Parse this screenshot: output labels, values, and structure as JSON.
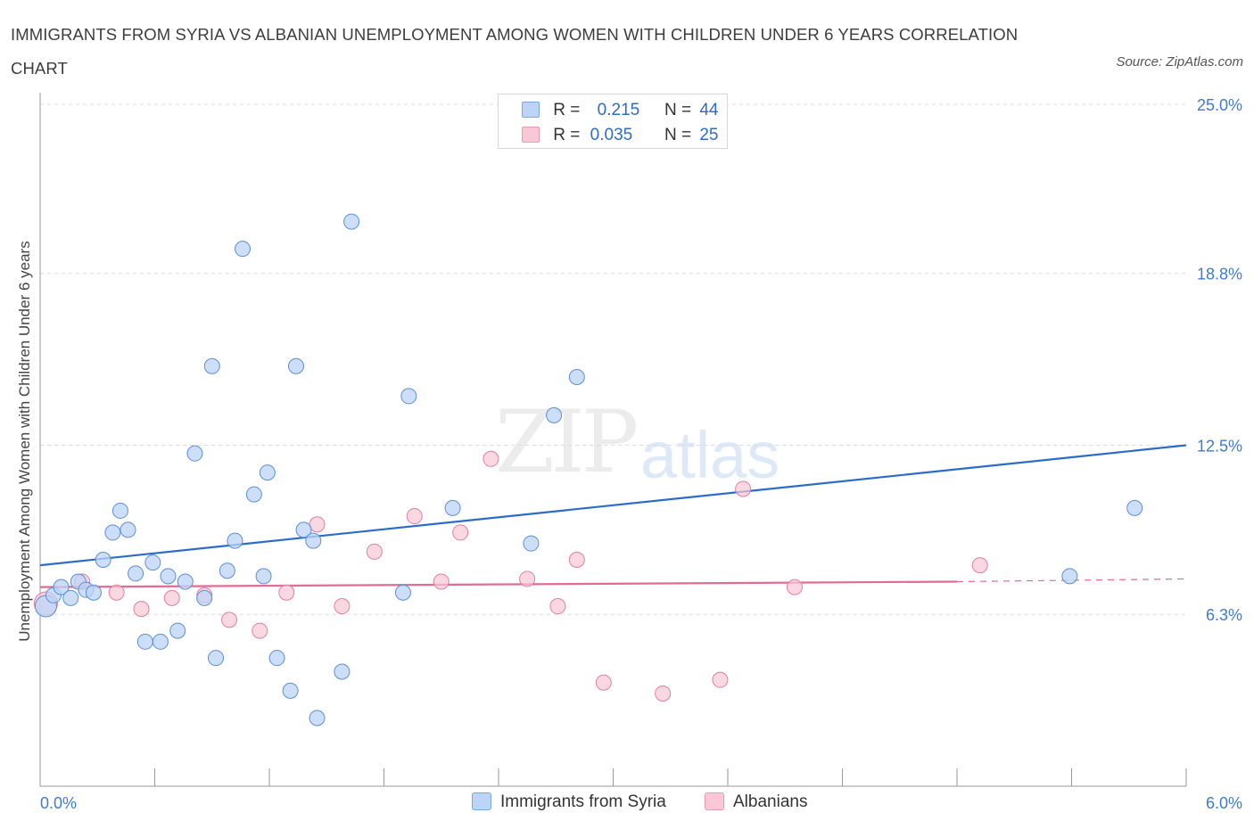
{
  "header": {
    "title": "IMMIGRANTS FROM SYRIA VS ALBANIAN UNEMPLOYMENT AMONG WOMEN WITH CHILDREN UNDER 6 YEARS CORRELATION CHART",
    "source": "Source: ZipAtlas.com"
  },
  "watermark": {
    "zip": "ZIP",
    "atlas": "atlas"
  },
  "legend": {
    "rows": [
      {
        "r_label": "R =",
        "r_value": "0.215",
        "n_label": "N =",
        "n_value": "44"
      },
      {
        "r_label": "R =",
        "r_value": "0.035",
        "n_label": "N =",
        "n_value": "25"
      }
    ]
  },
  "bottom_legend": {
    "series1": "Immigrants from Syria",
    "series2": "Albanians"
  },
  "colors": {
    "syria_fill": "#bcd4f5",
    "syria_stroke": "#5b8fd6",
    "syria_line": "#2b6cc9",
    "alb_fill": "#f8c8d6",
    "alb_stroke": "#e07f9f",
    "alb_line": "#e06c95",
    "grid": "#dcdcdc",
    "axis_label": "#3f7bd0"
  },
  "chart_data": {
    "type": "scatter",
    "title": "IMMIGRANTS FROM SYRIA VS ALBANIAN UNEMPLOYMENT AMONG WOMEN WITH CHILDREN UNDER 6 YEARS CORRELATION CHART",
    "xlabel": "",
    "ylabel": "Unemployment Among Women with Children Under 6 years",
    "xlim": [
      0,
      6
    ],
    "ylim": [
      0,
      25
    ],
    "x_tick_labels": [
      "0.0%",
      "6.0%"
    ],
    "y_ticks": [
      6.3,
      12.5,
      18.8,
      25.0
    ],
    "y_tick_labels": [
      "6.3%",
      "12.5%",
      "18.8%",
      "25.0%"
    ],
    "grid": true,
    "legend_position": "top-center",
    "series": [
      {
        "name": "Immigrants from Syria",
        "R": 0.215,
        "N": 44,
        "trend": {
          "x": [
            0,
            6
          ],
          "y": [
            8.1,
            12.5
          ]
        },
        "points": [
          {
            "x": 0.03,
            "y": 6.6
          },
          {
            "x": 0.07,
            "y": 7.0
          },
          {
            "x": 0.11,
            "y": 7.3
          },
          {
            "x": 0.16,
            "y": 6.9
          },
          {
            "x": 0.2,
            "y": 7.5
          },
          {
            "x": 0.24,
            "y": 7.2
          },
          {
            "x": 0.28,
            "y": 7.1
          },
          {
            "x": 0.33,
            "y": 8.3
          },
          {
            "x": 0.38,
            "y": 9.3
          },
          {
            "x": 0.42,
            "y": 10.1
          },
          {
            "x": 0.46,
            "y": 9.4
          },
          {
            "x": 0.5,
            "y": 7.8
          },
          {
            "x": 0.55,
            "y": 5.3
          },
          {
            "x": 0.59,
            "y": 8.2
          },
          {
            "x": 0.63,
            "y": 5.3
          },
          {
            "x": 0.67,
            "y": 7.7
          },
          {
            "x": 0.72,
            "y": 5.7
          },
          {
            "x": 0.76,
            "y": 7.5
          },
          {
            "x": 0.81,
            "y": 12.2
          },
          {
            "x": 0.86,
            "y": 6.9
          },
          {
            "x": 0.9,
            "y": 15.4
          },
          {
            "x": 0.92,
            "y": 4.7
          },
          {
            "x": 0.98,
            "y": 7.9
          },
          {
            "x": 1.02,
            "y": 9.0
          },
          {
            "x": 1.06,
            "y": 19.7
          },
          {
            "x": 1.12,
            "y": 10.7
          },
          {
            "x": 1.17,
            "y": 7.7
          },
          {
            "x": 1.19,
            "y": 11.5
          },
          {
            "x": 1.24,
            "y": 4.7
          },
          {
            "x": 1.31,
            "y": 3.5
          },
          {
            "x": 1.34,
            "y": 15.4
          },
          {
            "x": 1.38,
            "y": 9.4
          },
          {
            "x": 1.43,
            "y": 9.0
          },
          {
            "x": 1.45,
            "y": 2.5
          },
          {
            "x": 1.58,
            "y": 4.2
          },
          {
            "x": 1.63,
            "y": 20.7
          },
          {
            "x": 1.9,
            "y": 7.1
          },
          {
            "x": 1.93,
            "y": 14.3
          },
          {
            "x": 2.16,
            "y": 10.2
          },
          {
            "x": 2.57,
            "y": 8.9
          },
          {
            "x": 2.69,
            "y": 13.6
          },
          {
            "x": 2.81,
            "y": 15.0
          },
          {
            "x": 5.39,
            "y": 7.7
          },
          {
            "x": 5.73,
            "y": 10.2
          }
        ]
      },
      {
        "name": "Albanians",
        "R": 0.035,
        "N": 25,
        "trend": {
          "x": [
            0,
            4.8
          ],
          "y": [
            7.3,
            7.5
          ],
          "dashed_to": [
            6,
            7.6
          ]
        },
        "points": [
          {
            "x": 0.03,
            "y": 6.7
          },
          {
            "x": 0.22,
            "y": 7.5
          },
          {
            "x": 0.4,
            "y": 7.1
          },
          {
            "x": 0.53,
            "y": 6.5
          },
          {
            "x": 0.69,
            "y": 6.9
          },
          {
            "x": 0.86,
            "y": 7.0
          },
          {
            "x": 0.99,
            "y": 6.1
          },
          {
            "x": 1.15,
            "y": 5.7
          },
          {
            "x": 1.29,
            "y": 7.1
          },
          {
            "x": 1.45,
            "y": 9.6
          },
          {
            "x": 1.58,
            "y": 6.6
          },
          {
            "x": 1.75,
            "y": 8.6
          },
          {
            "x": 1.96,
            "y": 9.9
          },
          {
            "x": 2.1,
            "y": 7.5
          },
          {
            "x": 2.2,
            "y": 9.3
          },
          {
            "x": 2.36,
            "y": 12.0
          },
          {
            "x": 2.55,
            "y": 7.6
          },
          {
            "x": 2.71,
            "y": 6.6
          },
          {
            "x": 2.81,
            "y": 8.3
          },
          {
            "x": 2.95,
            "y": 3.8
          },
          {
            "x": 3.26,
            "y": 3.4
          },
          {
            "x": 3.56,
            "y": 3.9
          },
          {
            "x": 3.68,
            "y": 10.9
          },
          {
            "x": 3.95,
            "y": 7.3
          },
          {
            "x": 4.92,
            "y": 8.1
          }
        ]
      }
    ]
  }
}
